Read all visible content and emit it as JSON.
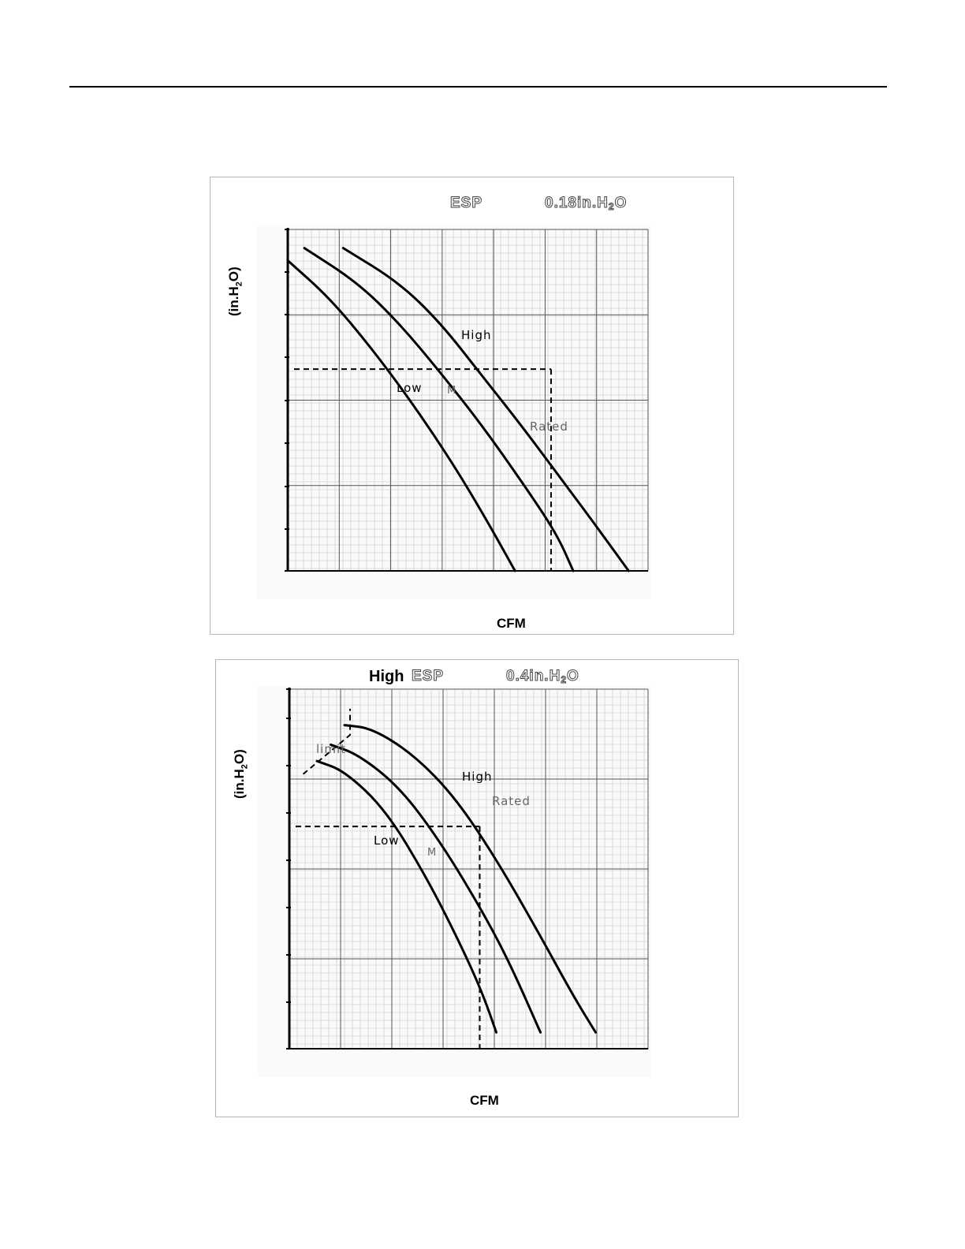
{
  "chart_data": [
    {
      "type": "line",
      "title_prefix": "",
      "title_esp": "ESP",
      "title_value_main": "0.18in.H",
      "title_value_sub": "2",
      "title_value_tail": "O",
      "xlabel": "CFM",
      "ylabel_main": "(in.H",
      "ylabel_sub": "2",
      "ylabel_tail": "O)",
      "grid": true,
      "series": [
        {
          "name": "High",
          "points": [
            [
              0.2,
              0.06
            ],
            [
              0.4,
              0.17
            ],
            [
              0.55,
              0.3
            ],
            [
              0.7,
              0.47
            ],
            [
              0.85,
              0.64
            ],
            [
              1.0,
              0.82
            ],
            [
              1.1,
              0.94
            ],
            [
              1.23,
              1.1
            ]
          ]
        },
        {
          "name": "M",
          "points": [
            [
              0.06,
              0.06
            ],
            [
              0.25,
              0.17
            ],
            [
              0.4,
              0.3
            ],
            [
              0.55,
              0.46
            ],
            [
              0.7,
              0.63
            ],
            [
              0.85,
              0.82
            ],
            [
              0.97,
              0.98
            ],
            [
              1.03,
              1.1
            ]
          ]
        },
        {
          "name": "Low",
          "points": [
            [
              0.0,
              0.1
            ],
            [
              0.15,
              0.22
            ],
            [
              0.3,
              0.38
            ],
            [
              0.45,
              0.56
            ],
            [
              0.6,
              0.76
            ],
            [
              0.72,
              0.94
            ],
            [
              0.82,
              1.1
            ]
          ]
        }
      ],
      "annotations": [
        {
          "text": "High",
          "color": "#000000"
        },
        {
          "text": "Low",
          "color": "#000000"
        },
        {
          "text": "M",
          "color": "#666666"
        },
        {
          "text": "Rated",
          "color": "#666666"
        }
      ],
      "rated_point": {
        "x": 0.95,
        "y": 0.45
      }
    },
    {
      "type": "line",
      "title_prefix": "High",
      "title_esp": "ESP",
      "title_value_main": "0.4in.H",
      "title_value_sub": "2",
      "title_value_tail": "O",
      "xlabel": "CFM",
      "ylabel_main": "(in.H",
      "ylabel_sub": "2",
      "ylabel_tail": "O)",
      "grid": true,
      "series": [
        {
          "name": "High",
          "points": [
            [
              0.2,
              0.11
            ],
            [
              0.3,
              0.12
            ],
            [
              0.45,
              0.2
            ],
            [
              0.6,
              0.33
            ],
            [
              0.75,
              0.52
            ],
            [
              0.9,
              0.74
            ],
            [
              1.03,
              0.94
            ],
            [
              1.11,
              1.05
            ]
          ]
        },
        {
          "name": "M",
          "points": [
            [
              0.15,
              0.17
            ],
            [
              0.25,
              0.2
            ],
            [
              0.4,
              0.3
            ],
            [
              0.55,
              0.47
            ],
            [
              0.7,
              0.68
            ],
            [
              0.8,
              0.84
            ],
            [
              0.91,
              1.05
            ]
          ]
        },
        {
          "name": "Low",
          "points": [
            [
              0.1,
              0.22
            ],
            [
              0.2,
              0.25
            ],
            [
              0.35,
              0.37
            ],
            [
              0.5,
              0.58
            ],
            [
              0.62,
              0.78
            ],
            [
              0.7,
              0.93
            ],
            [
              0.75,
              1.05
            ]
          ]
        },
        {
          "name": "limit",
          "points": [
            [
              0.05,
              0.26
            ],
            [
              0.22,
              0.14
            ],
            [
              0.22,
              0.06
            ]
          ]
        }
      ],
      "annotations": [
        {
          "text": "limit",
          "color": "#666666"
        },
        {
          "text": "High",
          "color": "#000000"
        },
        {
          "text": "Rated",
          "color": "#666666"
        },
        {
          "text": "Low",
          "color": "#000000"
        },
        {
          "text": "M",
          "color": "#666666"
        }
      ],
      "rated_point": {
        "x": 0.69,
        "y": 0.42
      }
    }
  ]
}
